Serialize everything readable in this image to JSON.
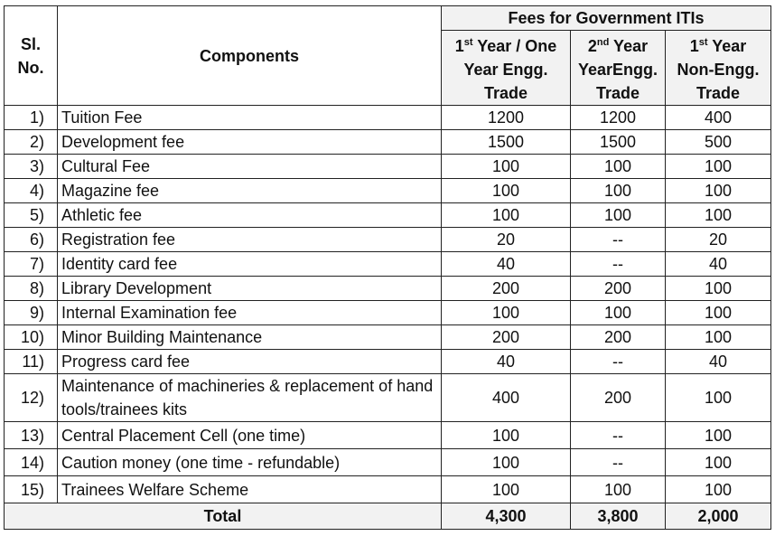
{
  "header": {
    "sl_no": "Sl. No.",
    "components": "Components",
    "group": "Fees for Government ITIs",
    "columns": [
      {
        "ord": "1",
        "sup": "st",
        "rest": " Year / One Year Engg. Trade"
      },
      {
        "ord": "2",
        "sup": "nd",
        "rest": " Year YearEngg. Trade"
      },
      {
        "ord": "1",
        "sup": "st",
        "rest": " Year Non-Engg. Trade"
      }
    ]
  },
  "rows": [
    {
      "sl": "1)",
      "component": "Tuition Fee",
      "v1": "1200",
      "v2": "1200",
      "v3": "400"
    },
    {
      "sl": "2)",
      "component": "Development fee",
      "v1": "1500",
      "v2": "1500",
      "v3": "500"
    },
    {
      "sl": "3)",
      "component": "Cultural Fee",
      "v1": "100",
      "v2": "100",
      "v3": "100"
    },
    {
      "sl": "4)",
      "component": "Magazine fee",
      "v1": "100",
      "v2": "100",
      "v3": "100"
    },
    {
      "sl": "5)",
      "component": "Athletic fee",
      "v1": "100",
      "v2": "100",
      "v3": "100"
    },
    {
      "sl": "6)",
      "component": "Registration fee",
      "v1": "20",
      "v2": "--",
      "v3": "20"
    },
    {
      "sl": "7)",
      "component": "Identity card fee",
      "v1": "40",
      "v2": "--",
      "v3": "40"
    },
    {
      "sl": "8)",
      "component": "Library Development",
      "v1": "200",
      "v2": "200",
      "v3": "100"
    },
    {
      "sl": "9)",
      "component": "Internal Examination fee",
      "v1": "100",
      "v2": "100",
      "v3": "100"
    },
    {
      "sl": "10)",
      "component": "Minor Building Maintenance",
      "v1": "200",
      "v2": "200",
      "v3": "100"
    },
    {
      "sl": "11)",
      "component": "Progress card fee",
      "v1": "40",
      "v2": "--",
      "v3": "40"
    },
    {
      "sl": "12)",
      "component": "Maintenance of machineries & replacement of hand tools/trainees kits",
      "v1": "400",
      "v2": "200",
      "v3": "100"
    },
    {
      "sl": "13)",
      "component": "Central Placement Cell (one time)",
      "v1": "100",
      "v2": "--",
      "v3": "100"
    },
    {
      "sl": "14)",
      "component": "Caution money (one time - refundable)",
      "v1": "100",
      "v2": "--",
      "v3": "100"
    },
    {
      "sl": "15)",
      "component": "Trainees Welfare Scheme",
      "v1": "100",
      "v2": "100",
      "v3": "100"
    }
  ],
  "total": {
    "label": "Total",
    "v1": "4,300",
    "v2": "3,800",
    "v3": "2,000"
  }
}
